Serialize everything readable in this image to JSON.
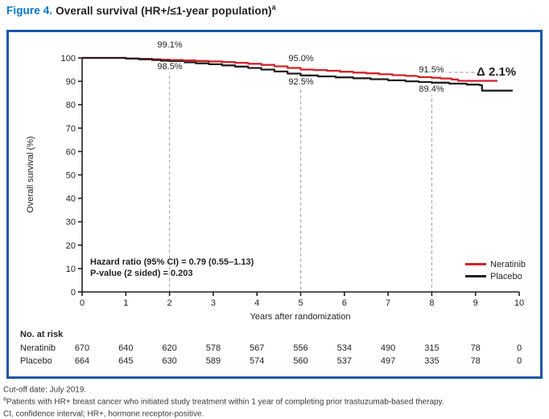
{
  "page_title": {
    "prefix": "Figure 4.",
    "main": "Overall survival (HR+/≤1-year population)",
    "sup": "a"
  },
  "chart_data": {
    "type": "line",
    "subtype": "kaplan-meier-step",
    "title": "Overall survival (HR+/≤1-year population)",
    "xlabel": "Years after randomization",
    "ylabel": "Overall survival (%)",
    "xlim": [
      0,
      10
    ],
    "ylim": [
      0,
      100
    ],
    "xticks": [
      0,
      1,
      2,
      3,
      4,
      5,
      6,
      7,
      8,
      9,
      10
    ],
    "yticks": [
      0,
      10,
      20,
      30,
      40,
      50,
      60,
      70,
      80,
      90,
      100
    ],
    "grid": false,
    "legend_position": "lower right",
    "series": [
      {
        "name": "Neratinib",
        "color": "#d1232a",
        "points": [
          [
            0,
            100
          ],
          [
            0.7,
            100
          ],
          [
            1.0,
            99.8
          ],
          [
            1.3,
            99.6
          ],
          [
            1.6,
            99.4
          ],
          [
            1.8,
            99.2
          ],
          [
            2,
            99.1
          ],
          [
            2.3,
            98.9
          ],
          [
            2.6,
            98.7
          ],
          [
            2.9,
            98.5
          ],
          [
            3.2,
            98.2
          ],
          [
            3.5,
            97.9
          ],
          [
            3.8,
            97.5
          ],
          [
            4.1,
            97.0
          ],
          [
            4.4,
            96.4
          ],
          [
            4.7,
            95.7
          ],
          [
            5,
            95.0
          ],
          [
            5.3,
            94.8
          ],
          [
            5.6,
            94.5
          ],
          [
            5.9,
            94.1
          ],
          [
            6.2,
            93.7
          ],
          [
            6.5,
            93.4
          ],
          [
            6.8,
            93.0
          ],
          [
            7.1,
            92.6
          ],
          [
            7.4,
            92.3
          ],
          [
            7.7,
            91.8
          ],
          [
            8,
            91.5
          ],
          [
            8.2,
            91.2
          ],
          [
            8.45,
            90.8
          ],
          [
            8.6,
            90.2
          ],
          [
            9.5,
            90.2
          ]
        ]
      },
      {
        "name": "Placebo",
        "color": "#231f20",
        "points": [
          [
            0,
            100
          ],
          [
            0.7,
            100
          ],
          [
            1.0,
            99.7
          ],
          [
            1.3,
            99.4
          ],
          [
            1.6,
            99.1
          ],
          [
            1.8,
            98.8
          ],
          [
            2,
            98.5
          ],
          [
            2.3,
            98.1
          ],
          [
            2.6,
            97.7
          ],
          [
            2.9,
            97.3
          ],
          [
            3.2,
            96.8
          ],
          [
            3.5,
            96.3
          ],
          [
            3.8,
            95.7
          ],
          [
            4.1,
            95.0
          ],
          [
            4.4,
            94.2
          ],
          [
            4.7,
            93.3
          ],
          [
            5,
            92.5
          ],
          [
            5.4,
            92.1
          ],
          [
            5.8,
            91.7
          ],
          [
            6.2,
            91.3
          ],
          [
            6.6,
            90.9
          ],
          [
            7.0,
            90.4
          ],
          [
            7.4,
            90.0
          ],
          [
            7.7,
            89.7
          ],
          [
            8,
            89.4
          ],
          [
            8.4,
            89.0
          ],
          [
            8.8,
            88.6
          ],
          [
            9.1,
            88.3
          ],
          [
            9.15,
            86.0
          ],
          [
            9.85,
            86.0
          ]
        ]
      }
    ],
    "annotations": [
      {
        "year": 2,
        "series": "Neratinib",
        "label": "99.1%"
      },
      {
        "year": 2,
        "series": "Placebo",
        "label": "98.5%"
      },
      {
        "year": 5,
        "series": "Neratinib",
        "label": "95.0%"
      },
      {
        "year": 5,
        "series": "Placebo",
        "label": "92.5%"
      },
      {
        "year": 8,
        "series": "Neratinib",
        "label": "91.5%"
      },
      {
        "year": 8,
        "series": "Placebo",
        "label": "89.4%"
      }
    ],
    "delta_label": "Δ 2.1%",
    "guides": {
      "vertical": [
        {
          "year": 2,
          "from_pct": 97.4
        },
        {
          "year": 5,
          "from_pct": 93.6
        },
        {
          "year": 8,
          "from_pct": 92.2
        }
      ],
      "horizontal": {
        "pct": 93.8,
        "from_year": 8.0,
        "to_year": 9.1
      }
    },
    "stats": [
      "Hazard ratio (95% CI) = 0.79 (0.55–1.13)",
      "P-value (2 sided) = 0.203"
    ]
  },
  "risk_table": {
    "title": "No. at risk",
    "rows": [
      {
        "label": "Neratinib",
        "values": [
          "670",
          "640",
          "620",
          "578",
          "567",
          "556",
          "534",
          "490",
          "315",
          "78",
          "0"
        ]
      },
      {
        "label": "Placebo",
        "values": [
          "664",
          "645",
          "630",
          "589",
          "574",
          "560",
          "537",
          "497",
          "335",
          "78",
          "0"
        ]
      }
    ]
  },
  "footnotes": [
    {
      "sup": "",
      "text": "Cut-off date: July 2019."
    },
    {
      "sup": "a",
      "text": "Patients with HR+ breast cancer who initiated study treatment within 1 year of completing prior trastuzumab-based therapy."
    },
    {
      "sup": "",
      "text": "CI, confidence interval; HR+, hormone receptor-positive."
    }
  ],
  "colors": {
    "accent_blue": "#0076c8",
    "border_blue": "#1b57a8",
    "neratinib_red": "#d1232a",
    "placebo_black": "#231f20",
    "dashed_gray": "#a7a9ac",
    "text": "#231f20"
  }
}
